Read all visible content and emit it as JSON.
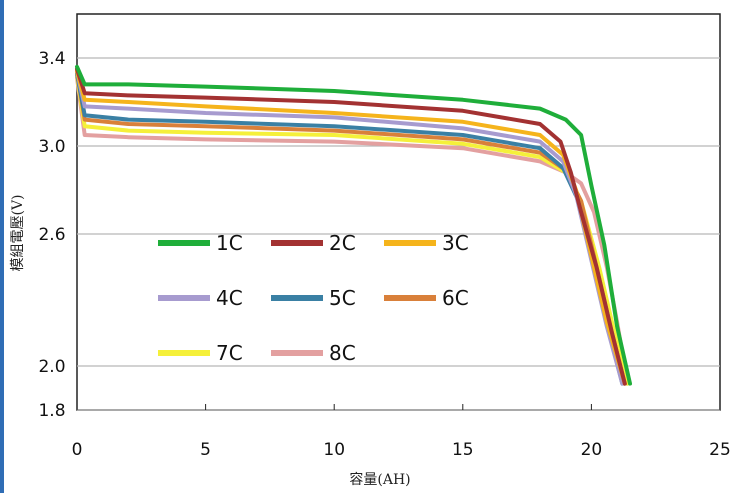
{
  "chart_data": {
    "type": "line",
    "title": "",
    "xlabel": "容量(AH)",
    "ylabel": "模組電壓(V)",
    "xlim": [
      0,
      25
    ],
    "ylim": [
      1.8,
      3.6
    ],
    "x_ticks": [
      "0",
      "5",
      "10",
      "15",
      "20",
      "25"
    ],
    "y_ticks": [
      "1.8",
      "2.0",
      "2.6",
      "3.0",
      "3.4"
    ],
    "grid": "horizontal",
    "legend_position": "inside-lower-left",
    "series": [
      {
        "name": "1C",
        "color": "#1fae3a",
        "x": [
          0,
          0.3,
          2,
          5,
          10,
          15,
          18,
          19.0,
          19.6,
          20.0,
          20.5,
          21.0,
          21.5
        ],
        "y": [
          3.36,
          3.28,
          3.28,
          3.27,
          3.25,
          3.21,
          3.17,
          3.12,
          3.05,
          2.82,
          2.55,
          2.18,
          1.92
        ]
      },
      {
        "name": "2C",
        "color": "#a33232",
        "x": [
          0,
          0.3,
          2,
          5,
          10,
          15,
          18,
          18.8,
          19.2,
          19.6,
          20.2,
          20.8,
          21.3
        ],
        "y": [
          3.35,
          3.24,
          3.23,
          3.22,
          3.2,
          3.16,
          3.1,
          3.02,
          2.88,
          2.7,
          2.45,
          2.15,
          1.92
        ]
      },
      {
        "name": "3C",
        "color": "#f5b41c",
        "x": [
          0,
          0.3,
          2,
          5,
          10,
          15,
          18,
          18.9,
          19.4,
          20.0,
          20.6,
          21.3
        ],
        "y": [
          3.34,
          3.21,
          3.2,
          3.18,
          3.15,
          3.11,
          3.05,
          2.96,
          2.8,
          2.5,
          2.2,
          1.92
        ]
      },
      {
        "name": "4C",
        "color": "#a79bcf",
        "x": [
          0,
          0.3,
          2,
          5,
          10,
          15,
          18,
          18.9,
          19.4,
          20.0,
          20.6,
          21.2
        ],
        "y": [
          3.34,
          3.18,
          3.17,
          3.15,
          3.13,
          3.08,
          3.02,
          2.93,
          2.78,
          2.48,
          2.18,
          1.92
        ]
      },
      {
        "name": "5C",
        "color": "#3a80a4",
        "x": [
          0,
          0.3,
          2,
          5,
          10,
          15,
          18,
          18.9,
          19.5,
          20.1,
          20.7,
          21.2
        ],
        "y": [
          3.33,
          3.14,
          3.12,
          3.11,
          3.09,
          3.05,
          2.99,
          2.9,
          2.75,
          2.45,
          2.15,
          1.92
        ]
      },
      {
        "name": "6C",
        "color": "#d9803a",
        "x": [
          0,
          0.3,
          2,
          5,
          10,
          15,
          18,
          19.0,
          19.6,
          20.2,
          20.8,
          21.3
        ],
        "y": [
          3.33,
          3.12,
          3.1,
          3.09,
          3.07,
          3.03,
          2.97,
          2.89,
          2.75,
          2.45,
          2.15,
          1.92
        ]
      },
      {
        "name": "7C",
        "color": "#f5f03a",
        "x": [
          0,
          0.3,
          2,
          5,
          10,
          15,
          18,
          19.0,
          19.6,
          20.3,
          20.9,
          21.4
        ],
        "y": [
          3.32,
          3.09,
          3.07,
          3.06,
          3.05,
          3.01,
          2.95,
          2.88,
          2.75,
          2.45,
          2.15,
          1.92
        ]
      },
      {
        "name": "8C",
        "color": "#e3a0a0",
        "x": [
          0,
          0.3,
          2,
          5,
          10,
          15,
          18,
          19.0,
          19.6,
          20.1,
          20.6,
          21.0,
          21.4
        ],
        "y": [
          3.31,
          3.05,
          3.04,
          3.03,
          3.02,
          2.99,
          2.93,
          2.88,
          2.83,
          2.7,
          2.45,
          2.2,
          1.92
        ]
      }
    ]
  }
}
